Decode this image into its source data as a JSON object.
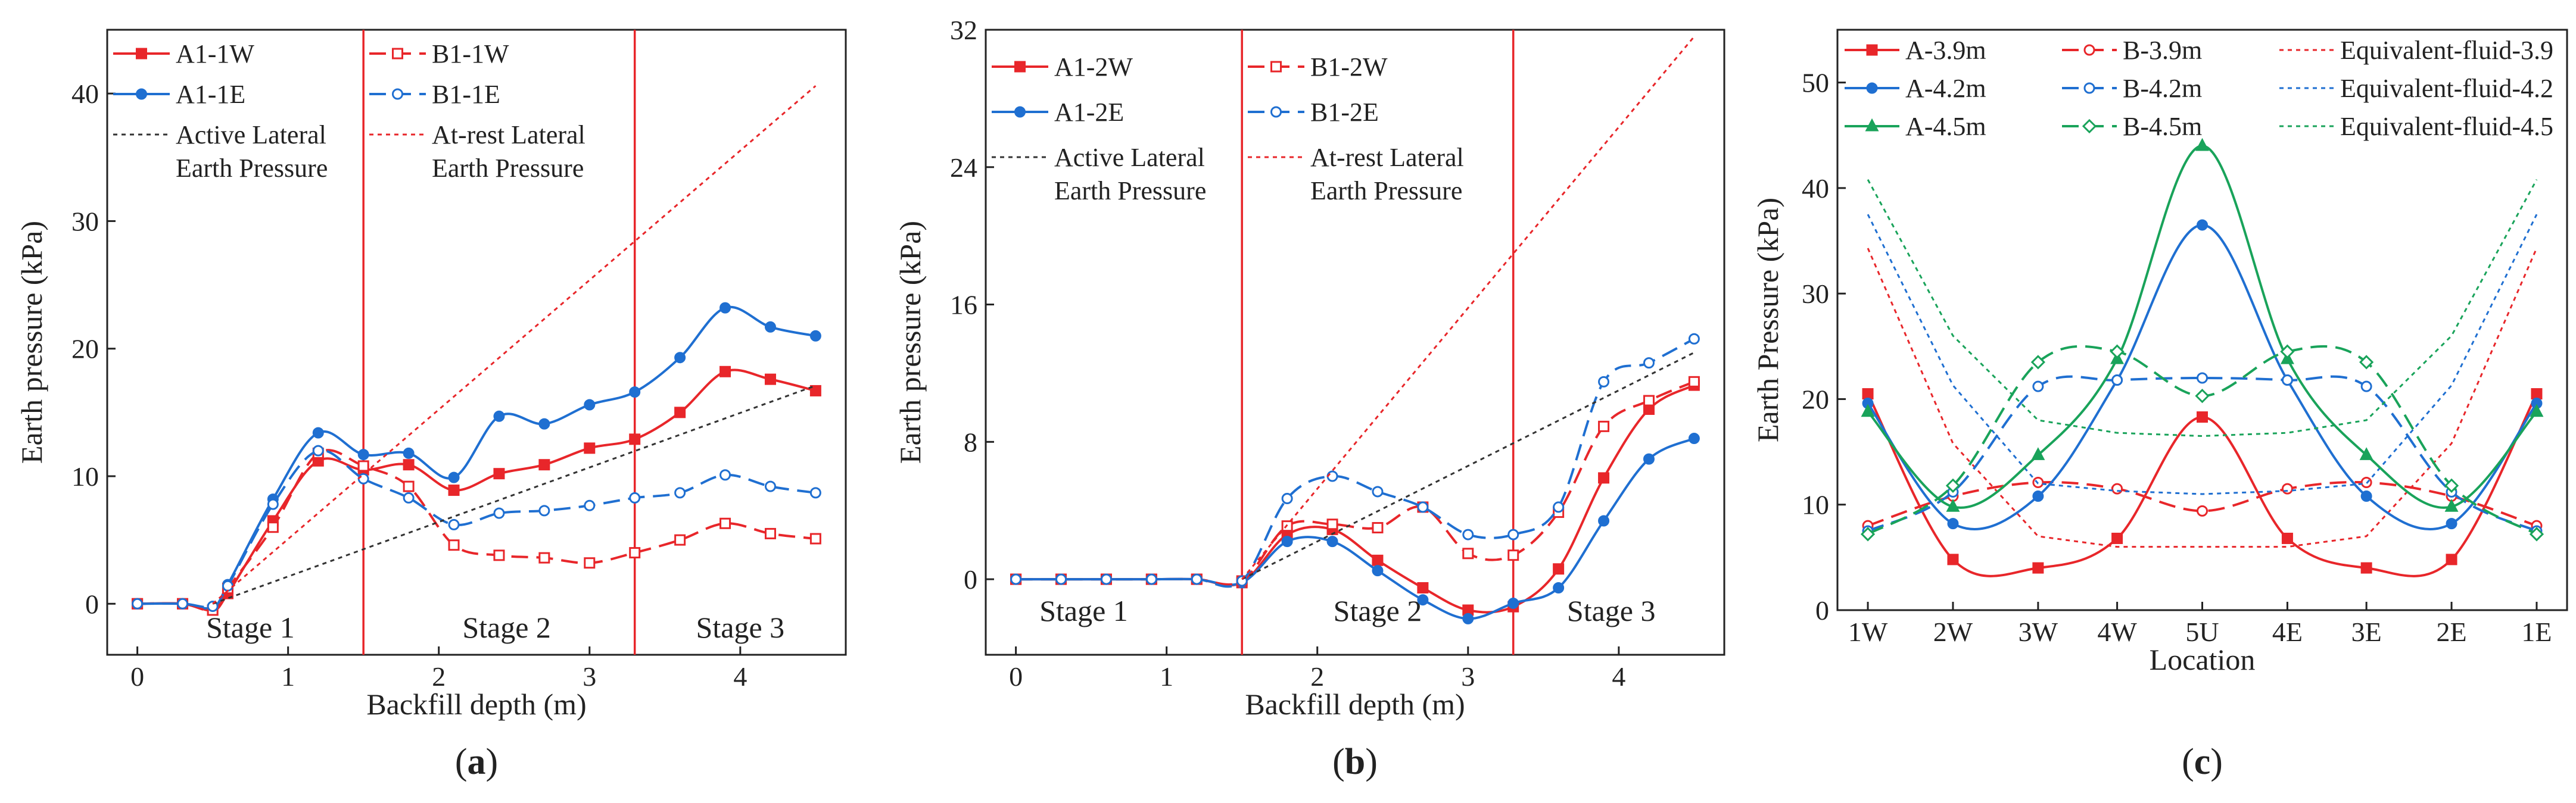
{
  "colors": {
    "red": "#e8262a",
    "blue": "#1f6fd1",
    "green": "#19a35a",
    "black": "#333333"
  },
  "chart_data": [
    {
      "id": "a",
      "type": "line",
      "caption": "(a)",
      "xlabel": "Backfill depth (m)",
      "ylabel": "Earth pressure (kPa)",
      "xlim": [
        -0.2,
        4.7
      ],
      "ylim": [
        -4,
        45
      ],
      "xticks": [
        0,
        1,
        2,
        3,
        4
      ],
      "yticks": [
        0,
        10,
        20,
        30,
        40
      ],
      "stage_lines": [
        1.5,
        3.3
      ],
      "stages": [
        {
          "label": "Stage 1",
          "x": 0.75,
          "y": -1.8
        },
        {
          "label": "Stage 2",
          "x": 2.45,
          "y": -1.8
        },
        {
          "label": "Stage 3",
          "x": 4.0,
          "y": -1.8
        }
      ],
      "series": [
        {
          "name": "A1-1W",
          "color": "red",
          "style": "solid",
          "marker": "filled-square",
          "x": [
            0,
            0.3,
            0.5,
            0.6,
            0.9,
            1.2,
            1.5,
            1.8,
            2.1,
            2.4,
            2.7,
            3.0,
            3.3,
            3.6,
            3.9,
            4.2,
            4.5
          ],
          "y": [
            0,
            0,
            -0.5,
            0.8,
            6.5,
            11.2,
            10.5,
            10.9,
            8.9,
            10.2,
            10.9,
            12.2,
            12.9,
            15.0,
            18.2,
            17.6,
            16.7
          ]
        },
        {
          "name": "A1-1E",
          "color": "blue",
          "style": "solid",
          "marker": "filled-circle",
          "x": [
            0,
            0.3,
            0.5,
            0.6,
            0.9,
            1.2,
            1.5,
            1.8,
            2.1,
            2.4,
            2.7,
            3.0,
            3.3,
            3.6,
            3.9,
            4.2,
            4.5
          ],
          "y": [
            0,
            0,
            -0.3,
            1.5,
            8.2,
            13.4,
            11.7,
            11.8,
            9.9,
            14.7,
            14.1,
            15.6,
            16.6,
            19.3,
            23.2,
            21.7,
            21.0
          ]
        },
        {
          "name": "B1-1W",
          "color": "red",
          "style": "dashed",
          "marker": "open-square",
          "x": [
            0,
            0.3,
            0.5,
            0.6,
            0.9,
            1.2,
            1.5,
            1.8,
            2.1,
            2.4,
            2.7,
            3.0,
            3.3,
            3.6,
            3.9,
            4.2,
            4.5
          ],
          "y": [
            0,
            0,
            -0.5,
            1.2,
            6.0,
            11.8,
            10.8,
            9.2,
            4.6,
            3.8,
            3.6,
            3.2,
            4.0,
            5.0,
            6.3,
            5.5,
            5.1
          ]
        },
        {
          "name": "B1-1E",
          "color": "blue",
          "style": "dashed",
          "marker": "open-circle",
          "x": [
            0,
            0.3,
            0.5,
            0.6,
            0.9,
            1.2,
            1.5,
            1.8,
            2.1,
            2.4,
            2.7,
            3.0,
            3.3,
            3.6,
            3.9,
            4.2,
            4.5
          ],
          "y": [
            0,
            0,
            -0.2,
            1.4,
            7.8,
            12.0,
            9.8,
            8.3,
            6.2,
            7.1,
            7.3,
            7.7,
            8.3,
            8.7,
            10.1,
            9.2,
            8.7
          ]
        },
        {
          "name": "Active Lateral Earth Pressure",
          "color": "black",
          "style": "dotted",
          "marker": "none",
          "x": [
            0.5,
            4.5
          ],
          "y": [
            0,
            17.1
          ]
        },
        {
          "name": "At-rest Lateral Earth Pressure",
          "color": "red",
          "style": "dotted",
          "marker": "none",
          "x": [
            0.5,
            4.5
          ],
          "y": [
            0,
            40.6
          ]
        }
      ],
      "legend": [
        {
          "label": "A1-1W",
          "series": 0
        },
        {
          "label": "B1-1W",
          "series": 2
        },
        {
          "label": "A1-1E",
          "series": 1
        },
        {
          "label": "B1-1E",
          "series": 3
        },
        {
          "label": "Active Lateral",
          "label2": "Earth Pressure",
          "series": 4
        },
        {
          "label": "At-rest Lateral",
          "label2": "Earth Pressure",
          "series": 5
        }
      ]
    },
    {
      "id": "b",
      "type": "line",
      "caption": "(b)",
      "xlabel": "Backfill depth (m)",
      "ylabel": "Earth pressure (kPa)",
      "xlim": [
        -0.2,
        4.7
      ],
      "ylim": [
        -4.4,
        32
      ],
      "xticks": [
        0,
        1,
        2,
        3,
        4
      ],
      "yticks": [
        0,
        8,
        16,
        24,
        32
      ],
      "stage_lines": [
        1.5,
        3.3
      ],
      "stages": [
        {
          "label": "Stage 1",
          "x": 0.45,
          "y": -1.8
        },
        {
          "label": "Stage 2",
          "x": 2.4,
          "y": -1.8
        },
        {
          "label": "Stage 3",
          "x": 3.95,
          "y": -1.8
        }
      ],
      "series": [
        {
          "name": "A1-2W",
          "color": "red",
          "style": "solid",
          "marker": "filled-square",
          "x": [
            0,
            0.3,
            0.6,
            0.9,
            1.2,
            1.5,
            1.8,
            2.1,
            2.4,
            2.7,
            3.0,
            3.3,
            3.6,
            3.9,
            4.2,
            4.5
          ],
          "y": [
            0,
            0,
            0,
            0,
            0,
            -0.2,
            2.6,
            2.9,
            1.1,
            -0.5,
            -1.8,
            -1.6,
            0.6,
            5.9,
            9.9,
            11.3
          ]
        },
        {
          "name": "A1-2E",
          "color": "blue",
          "style": "solid",
          "marker": "filled-circle",
          "x": [
            0,
            0.3,
            0.6,
            0.9,
            1.2,
            1.5,
            1.8,
            2.1,
            2.4,
            2.7,
            3.0,
            3.3,
            3.6,
            3.9,
            4.2,
            4.5
          ],
          "y": [
            0,
            0,
            0,
            0,
            0,
            -0.2,
            2.2,
            2.2,
            0.5,
            -1.2,
            -2.3,
            -1.4,
            -0.5,
            3.4,
            7.0,
            8.2
          ]
        },
        {
          "name": "B1-2W",
          "color": "red",
          "style": "dashed",
          "marker": "open-square",
          "x": [
            0,
            0.3,
            0.6,
            0.9,
            1.2,
            1.5,
            1.8,
            2.1,
            2.4,
            2.7,
            3.0,
            3.3,
            3.6,
            3.9,
            4.2,
            4.5
          ],
          "y": [
            0,
            0,
            0,
            0,
            0,
            -0.1,
            3.1,
            3.2,
            3.0,
            4.2,
            1.5,
            1.4,
            3.9,
            8.9,
            10.4,
            11.5
          ]
        },
        {
          "name": "B1-2E",
          "color": "blue",
          "style": "dashed",
          "marker": "open-circle",
          "x": [
            0,
            0.3,
            0.6,
            0.9,
            1.2,
            1.5,
            1.8,
            2.1,
            2.4,
            2.7,
            3.0,
            3.3,
            3.6,
            3.9,
            4.2,
            4.5
          ],
          "y": [
            0,
            0,
            0,
            0,
            0,
            -0.1,
            4.7,
            6.0,
            5.1,
            4.2,
            2.6,
            2.6,
            4.2,
            11.5,
            12.6,
            14.0
          ]
        },
        {
          "name": "Active Lateral Earth Pressure",
          "color": "black",
          "style": "dotted",
          "marker": "none",
          "x": [
            1.5,
            4.5
          ],
          "y": [
            0,
            13.2
          ]
        },
        {
          "name": "At-rest Lateral Earth Pressure",
          "color": "red",
          "style": "dotted",
          "marker": "none",
          "x": [
            1.5,
            4.5
          ],
          "y": [
            0,
            31.6
          ]
        }
      ],
      "legend": [
        {
          "label": "A1-2W",
          "series": 0
        },
        {
          "label": "B1-2W",
          "series": 2
        },
        {
          "label": "A1-2E",
          "series": 1
        },
        {
          "label": "B1-2E",
          "series": 3
        },
        {
          "label": "Active Lateral",
          "label2": "Earth Pressure",
          "series": 4
        },
        {
          "label": "At-rest Lateral",
          "label2": "Earth Pressure",
          "series": 5
        }
      ]
    },
    {
      "id": "c",
      "type": "line",
      "caption": "(c)",
      "xlabel": "Location",
      "ylabel": "Earth Pressure (kPa)",
      "xlim": [
        -0.5,
        11.5
      ],
      "ylim": [
        0,
        55
      ],
      "categories": [
        "1W",
        "2W",
        "3W",
        "4W",
        "5U",
        "4E",
        "3E",
        "2E",
        "1E"
      ],
      "category_x": [
        0,
        1.4,
        2.8,
        4.1,
        5.5,
        6.9,
        8.2,
        9.6,
        11
      ],
      "yticks": [
        0,
        10,
        20,
        30,
        40,
        50
      ],
      "series": [
        {
          "name": "A-3.9m",
          "color": "red",
          "style": "solid",
          "marker": "filled-square",
          "y": [
            20.5,
            4.8,
            4.0,
            6.8,
            18.3,
            6.8,
            4.0,
            4.8,
            20.5
          ]
        },
        {
          "name": "B-3.9m",
          "color": "red",
          "style": "dashed",
          "marker": "open-circle",
          "y": [
            8.0,
            10.8,
            12.1,
            11.5,
            9.4,
            11.5,
            12.1,
            10.8,
            8.0
          ]
        },
        {
          "name": "Equivalent-fluid-3.9",
          "color": "red",
          "style": "dotted",
          "marker": "none",
          "y": [
            34.3,
            15.8,
            7.0,
            6.0,
            6.0,
            6.0,
            7.0,
            15.8,
            34.3
          ]
        },
        {
          "name": "A-4.2m",
          "color": "blue",
          "style": "solid",
          "marker": "filled-circle",
          "y": [
            19.6,
            8.2,
            10.8,
            21.8,
            36.5,
            21.8,
            10.8,
            8.2,
            19.6
          ]
        },
        {
          "name": "B-4.2m",
          "color": "blue",
          "style": "dashed",
          "marker": "open-circle",
          "y": [
            7.5,
            11.2,
            21.2,
            21.8,
            22.0,
            21.8,
            21.2,
            11.2,
            7.5
          ]
        },
        {
          "name": "Equivalent-fluid-4.2",
          "color": "blue",
          "style": "dotted",
          "marker": "none",
          "y": [
            37.5,
            21.3,
            12.0,
            11.3,
            11.0,
            11.3,
            12.0,
            21.3,
            37.5
          ]
        },
        {
          "name": "A-4.5m",
          "color": "green",
          "style": "solid",
          "marker": "filled-triangle",
          "y": [
            18.8,
            9.8,
            14.7,
            23.8,
            44.0,
            23.8,
            14.7,
            9.8,
            18.8
          ]
        },
        {
          "name": "B-4.5m",
          "color": "green",
          "style": "dashed",
          "marker": "open-diamond",
          "y": [
            7.2,
            11.8,
            23.5,
            24.5,
            20.3,
            24.5,
            23.5,
            11.8,
            7.2
          ]
        },
        {
          "name": "Equivalent-fluid-4.5",
          "color": "green",
          "style": "dotted",
          "marker": "none",
          "y": [
            40.8,
            26.0,
            18.0,
            16.8,
            16.5,
            16.8,
            18.0,
            26.0,
            40.8
          ]
        }
      ],
      "legend": [
        {
          "label": "A-3.9m",
          "series": 0
        },
        {
          "label": "B-3.9m",
          "series": 1
        },
        {
          "label": "Equivalent-fluid-3.9",
          "series": 2
        },
        {
          "label": "A-4.2m",
          "series": 3
        },
        {
          "label": "B-4.2m",
          "series": 4
        },
        {
          "label": "Equivalent-fluid-4.2",
          "series": 5
        },
        {
          "label": "A-4.5m",
          "series": 6
        },
        {
          "label": "B-4.5m",
          "series": 7
        },
        {
          "label": "Equivalent-fluid-4.5",
          "series": 8
        }
      ]
    }
  ]
}
